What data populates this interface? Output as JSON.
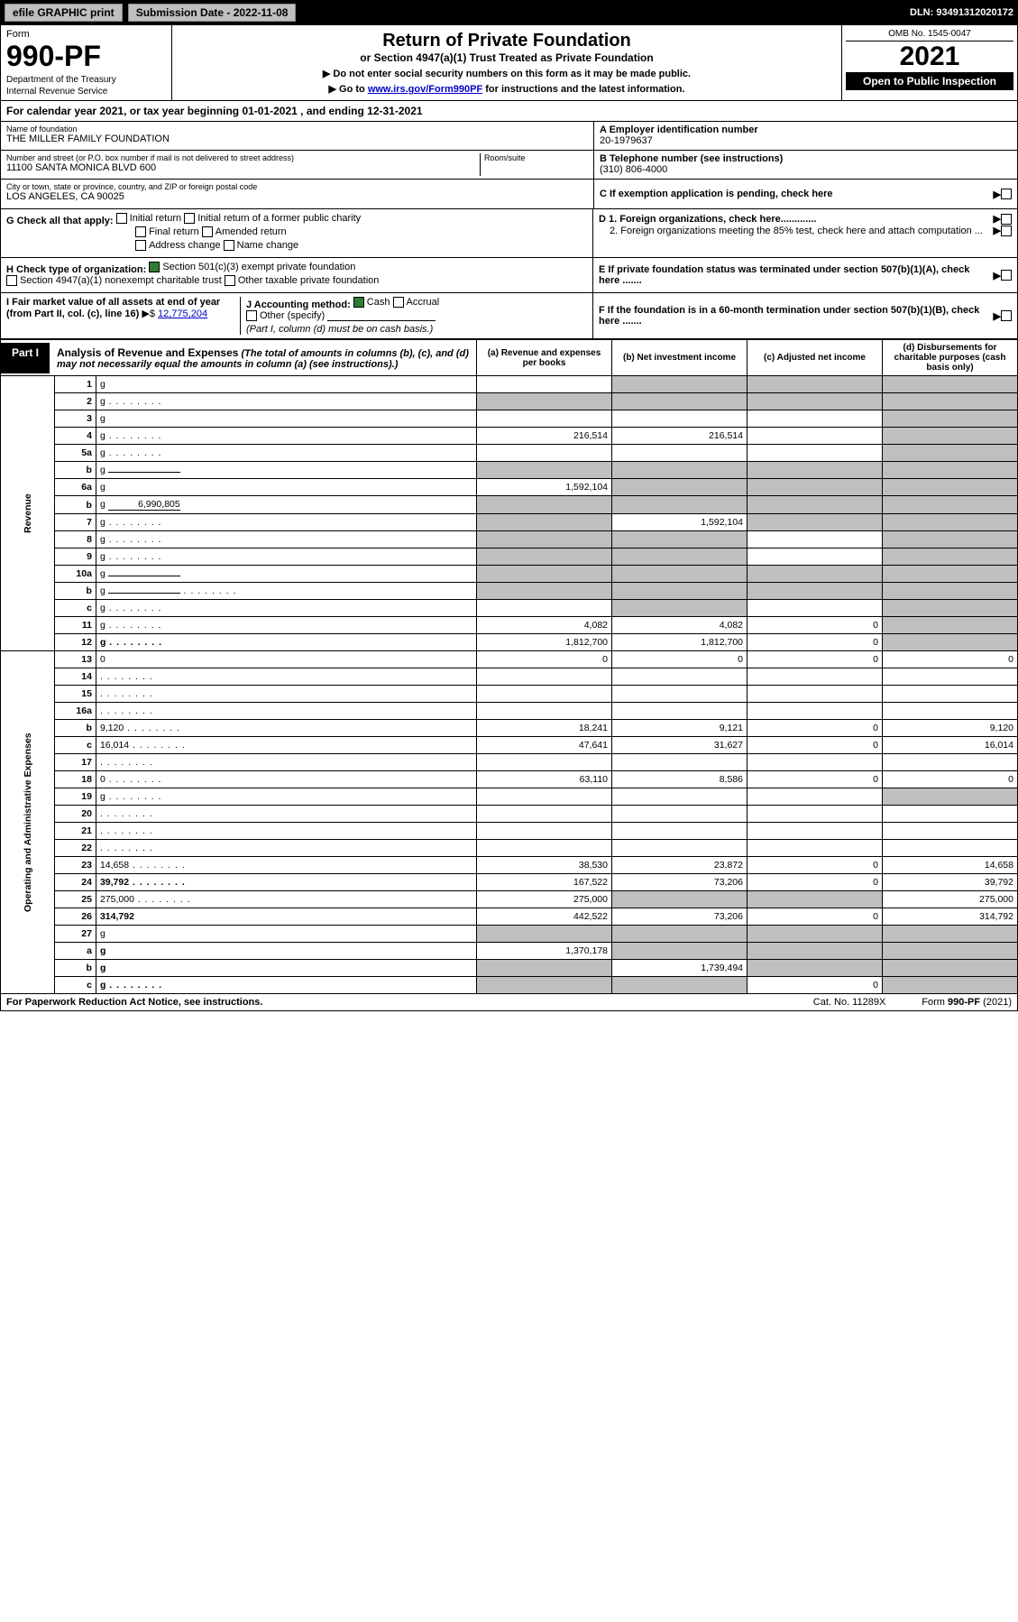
{
  "topbar": {
    "efile": "efile GRAPHIC print",
    "submission_label": "Submission Date - 2022-11-08",
    "dln": "DLN: 93491312020172"
  },
  "header": {
    "form_label": "Form",
    "form_num": "990-PF",
    "dept1": "Department of the Treasury",
    "dept2": "Internal Revenue Service",
    "title": "Return of Private Foundation",
    "subtitle": "or Section 4947(a)(1) Trust Treated as Private Foundation",
    "note1": "▶ Do not enter social security numbers on this form as it may be made public.",
    "note2_pre": "▶ Go to ",
    "note2_link": "www.irs.gov/Form990PF",
    "note2_post": " for instructions and the latest information.",
    "omb": "OMB No. 1545-0047",
    "year": "2021",
    "open": "Open to Public Inspection"
  },
  "calyear": "For calendar year 2021, or tax year beginning 01-01-2021          , and ending 12-31-2021",
  "info": {
    "name_label": "Name of foundation",
    "name": "THE MILLER FAMILY FOUNDATION",
    "addr_label": "Number and street (or P.O. box number if mail is not delivered to street address)",
    "addr": "11100 SANTA MONICA BLVD 600",
    "room_label": "Room/suite",
    "city_label": "City or town, state or province, country, and ZIP or foreign postal code",
    "city": "LOS ANGELES, CA  90025",
    "a_label": "A Employer identification number",
    "a_val": "20-1979637",
    "b_label": "B Telephone number (see instructions)",
    "b_val": "(310) 806-4000",
    "c_label": "C If exemption application is pending, check here",
    "d1": "D 1. Foreign organizations, check here.............",
    "d2": "2. Foreign organizations meeting the 85% test, check here and attach computation ...",
    "e_label": "E  If private foundation status was terminated under section 507(b)(1)(A), check here .......",
    "f_label": "F  If the foundation is in a 60-month termination under section 507(b)(1)(B), check here ......."
  },
  "g": {
    "label": "G Check all that apply:",
    "opts": [
      "Initial return",
      "Initial return of a former public charity",
      "Final return",
      "Amended return",
      "Address change",
      "Name change"
    ]
  },
  "h": {
    "label": "H Check type of organization:",
    "opt1": "Section 501(c)(3) exempt private foundation",
    "opt2": "Section 4947(a)(1) nonexempt charitable trust",
    "opt3": "Other taxable private foundation"
  },
  "i": {
    "label": "I Fair market value of all assets at end of year (from Part II, col. (c), line 16)",
    "arrow": "▶$",
    "val": "12,775,204"
  },
  "j": {
    "label": "J Accounting method:",
    "cash": "Cash",
    "accrual": "Accrual",
    "other": "Other (specify)",
    "note": "(Part I, column (d) must be on cash basis.)"
  },
  "part1": {
    "tab": "Part I",
    "title": "Analysis of Revenue and Expenses",
    "sub": "(The total of amounts in columns (b), (c), and (d) may not necessarily equal the amounts in column (a) (see instructions).)",
    "cols": {
      "a": "(a)   Revenue and expenses per books",
      "b": "(b)   Net investment income",
      "c": "(c)   Adjusted net income",
      "d": "(d)   Disbursements for charitable purposes (cash basis only)"
    }
  },
  "side": {
    "rev": "Revenue",
    "exp": "Operating and Administrative Expenses"
  },
  "rows": [
    {
      "n": "1",
      "d": "g",
      "a": "",
      "b": "g",
      "c": "g"
    },
    {
      "n": "2",
      "d": "g",
      "dots": true,
      "a": "g",
      "b": "g",
      "c": "g"
    },
    {
      "n": "3",
      "d": "g",
      "a": "",
      "b": "",
      "c": ""
    },
    {
      "n": "4",
      "d": "g",
      "dots": true,
      "a": "216,514",
      "b": "216,514",
      "c": ""
    },
    {
      "n": "5a",
      "d": "g",
      "dots": true,
      "a": "",
      "b": "",
      "c": ""
    },
    {
      "n": "b",
      "d": "g",
      "inline": "",
      "a": "g",
      "b": "g",
      "c": "g"
    },
    {
      "n": "6a",
      "d": "g",
      "a": "1,592,104",
      "b": "g",
      "c": "g"
    },
    {
      "n": "b",
      "d": "g",
      "inline": "6,990,805",
      "a": "g",
      "b": "g",
      "c": "g"
    },
    {
      "n": "7",
      "d": "g",
      "dots": true,
      "a": "g",
      "b": "1,592,104",
      "c": "g"
    },
    {
      "n": "8",
      "d": "g",
      "dots": true,
      "a": "g",
      "b": "g",
      "c": ""
    },
    {
      "n": "9",
      "d": "g",
      "dots": true,
      "a": "g",
      "b": "g",
      "c": ""
    },
    {
      "n": "10a",
      "d": "g",
      "inline": "",
      "a": "g",
      "b": "g",
      "c": "g"
    },
    {
      "n": "b",
      "d": "g",
      "dots": true,
      "inline": "",
      "a": "g",
      "b": "g",
      "c": "g"
    },
    {
      "n": "c",
      "d": "g",
      "dots": true,
      "a": "",
      "b": "g",
      "c": ""
    },
    {
      "n": "11",
      "d": "g",
      "dots": true,
      "a": "4,082",
      "b": "4,082",
      "c": "0"
    },
    {
      "n": "12",
      "d": "g",
      "dots": true,
      "bold": true,
      "a": "1,812,700",
      "b": "1,812,700",
      "c": "0"
    },
    {
      "n": "13",
      "d": "0",
      "a": "0",
      "b": "0",
      "c": "0"
    },
    {
      "n": "14",
      "d": "",
      "dots": true,
      "a": "",
      "b": "",
      "c": ""
    },
    {
      "n": "15",
      "d": "",
      "dots": true,
      "a": "",
      "b": "",
      "c": ""
    },
    {
      "n": "16a",
      "d": "",
      "dots": true,
      "a": "",
      "b": "",
      "c": ""
    },
    {
      "n": "b",
      "d": "9,120",
      "dots": true,
      "a": "18,241",
      "b": "9,121",
      "c": "0"
    },
    {
      "n": "c",
      "d": "16,014",
      "dots": true,
      "a": "47,641",
      "b": "31,627",
      "c": "0"
    },
    {
      "n": "17",
      "d": "",
      "dots": true,
      "a": "",
      "b": "",
      "c": ""
    },
    {
      "n": "18",
      "d": "0",
      "dots": true,
      "a": "63,110",
      "b": "8,586",
      "c": "0"
    },
    {
      "n": "19",
      "d": "g",
      "dots": true,
      "a": "",
      "b": "",
      "c": ""
    },
    {
      "n": "20",
      "d": "",
      "dots": true,
      "a": "",
      "b": "",
      "c": ""
    },
    {
      "n": "21",
      "d": "",
      "dots": true,
      "a": "",
      "b": "",
      "c": ""
    },
    {
      "n": "22",
      "d": "",
      "dots": true,
      "a": "",
      "b": "",
      "c": ""
    },
    {
      "n": "23",
      "d": "14,658",
      "dots": true,
      "a": "38,530",
      "b": "23,872",
      "c": "0"
    },
    {
      "n": "24",
      "d": "39,792",
      "dots": true,
      "bold": true,
      "a": "167,522",
      "b": "73,206",
      "c": "0"
    },
    {
      "n": "25",
      "d": "275,000",
      "dots": true,
      "a": "275,000",
      "b": "g",
      "c": "g"
    },
    {
      "n": "26",
      "d": "314,792",
      "bold": true,
      "a": "442,522",
      "b": "73,206",
      "c": "0"
    },
    {
      "n": "27",
      "d": "g",
      "a": "g",
      "b": "g",
      "c": "g"
    },
    {
      "n": "a",
      "d": "g",
      "bold": true,
      "a": "1,370,178",
      "b": "g",
      "c": "g"
    },
    {
      "n": "b",
      "d": "g",
      "bold": true,
      "a": "g",
      "b": "1,739,494",
      "c": "g"
    },
    {
      "n": "c",
      "d": "g",
      "dots": true,
      "bold": true,
      "a": "g",
      "b": "g",
      "c": "0"
    }
  ],
  "footer": {
    "left": "For Paperwork Reduction Act Notice, see instructions.",
    "mid": "Cat. No. 11289X",
    "right": "Form 990-PF (2021)"
  }
}
